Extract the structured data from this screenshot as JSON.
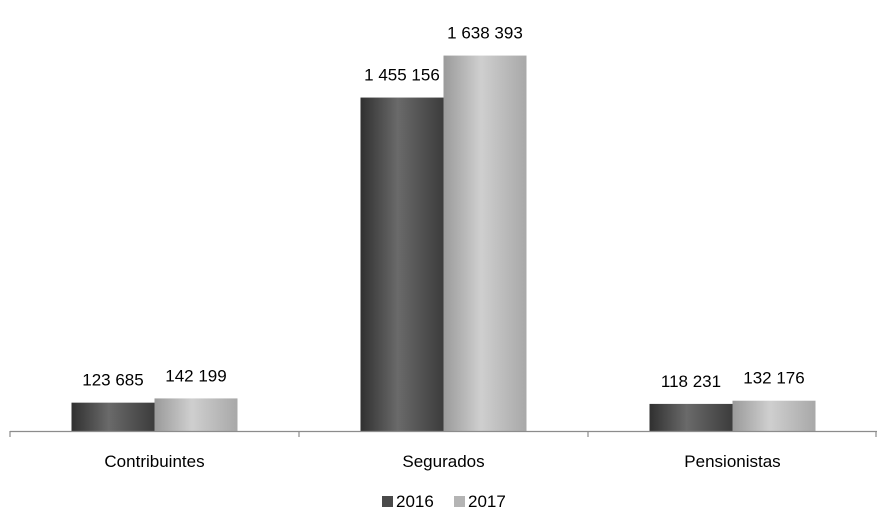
{
  "chart_data": {
    "type": "bar",
    "title": "",
    "xlabel": "",
    "ylabel": "",
    "categories": [
      "Contribuintes",
      "Segurados",
      "Pensionistas"
    ],
    "series": [
      {
        "name": "2016",
        "values": [
          123685,
          1455156,
          118231
        ],
        "labels": [
          "123 685",
          "1 455 156",
          "118 231"
        ],
        "color": "#4a4a4a"
      },
      {
        "name": "2017",
        "values": [
          142199,
          1638393,
          132176
        ],
        "labels": [
          "142 199",
          "1 638 393",
          "132 176"
        ],
        "color": "#b4b4b4"
      }
    ],
    "ylim": [
      0,
      1750000
    ],
    "grid": false,
    "legend": "bottom"
  }
}
